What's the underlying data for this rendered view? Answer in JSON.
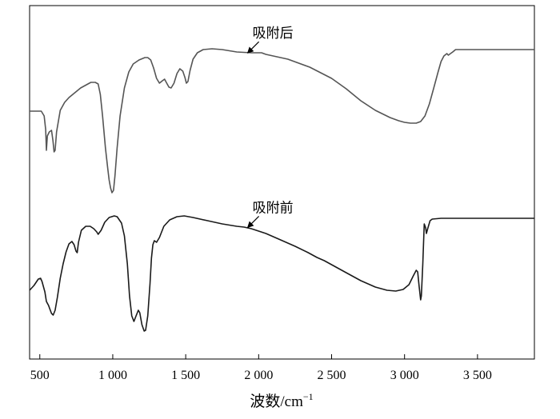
{
  "chart_data": {
    "type": "line",
    "title": "",
    "xlabel": "波数/cm",
    "xlabel_superscript": "−1",
    "ylabel": "",
    "xlim": [
      430,
      3890
    ],
    "xticks": [
      {
        "value": 500,
        "label": "500"
      },
      {
        "value": 1000,
        "label": "1 000"
      },
      {
        "value": 1500,
        "label": "1 500"
      },
      {
        "value": 2000,
        "label": "2 000"
      },
      {
        "value": 2500,
        "label": "2 500"
      },
      {
        "value": 3000,
        "label": "3 000"
      },
      {
        "value": 3500,
        "label": "3 500"
      }
    ],
    "y_axis_labels": "none",
    "grid": false,
    "legend": "none",
    "series": [
      {
        "color": "#555555",
        "points": [
          [
            430,
            139
          ],
          [
            480,
            139
          ],
          [
            510,
            139
          ],
          [
            530,
            145
          ],
          [
            540,
            162
          ],
          [
            545,
            188
          ],
          [
            552,
            170
          ],
          [
            565,
            165
          ],
          [
            580,
            163
          ],
          [
            590,
            176
          ],
          [
            598,
            190
          ],
          [
            605,
            188
          ],
          [
            615,
            165
          ],
          [
            640,
            138
          ],
          [
            670,
            128
          ],
          [
            700,
            122
          ],
          [
            740,
            116
          ],
          [
            780,
            110
          ],
          [
            820,
            106
          ],
          [
            850,
            103
          ],
          [
            880,
            103
          ],
          [
            900,
            105
          ],
          [
            915,
            118
          ],
          [
            930,
            145
          ],
          [
            950,
            185
          ],
          [
            965,
            210
          ],
          [
            975,
            225
          ],
          [
            985,
            235
          ],
          [
            995,
            241
          ],
          [
            1005,
            238
          ],
          [
            1015,
            220
          ],
          [
            1030,
            185
          ],
          [
            1050,
            145
          ],
          [
            1080,
            110
          ],
          [
            1110,
            90
          ],
          [
            1140,
            80
          ],
          [
            1180,
            75
          ],
          [
            1220,
            72
          ],
          [
            1240,
            72
          ],
          [
            1260,
            75
          ],
          [
            1280,
            85
          ],
          [
            1300,
            98
          ],
          [
            1320,
            104
          ],
          [
            1340,
            101
          ],
          [
            1355,
            99
          ],
          [
            1370,
            104
          ],
          [
            1385,
            109
          ],
          [
            1400,
            110
          ],
          [
            1420,
            104
          ],
          [
            1440,
            92
          ],
          [
            1460,
            86
          ],
          [
            1480,
            89
          ],
          [
            1495,
            97
          ],
          [
            1505,
            104
          ],
          [
            1515,
            102
          ],
          [
            1530,
            88
          ],
          [
            1550,
            74
          ],
          [
            1580,
            66
          ],
          [
            1620,
            62
          ],
          [
            1680,
            61
          ],
          [
            1750,
            62
          ],
          [
            1850,
            65
          ],
          [
            1950,
            66
          ],
          [
            2020,
            66
          ],
          [
            2050,
            68
          ],
          [
            2200,
            74
          ],
          [
            2350,
            84
          ],
          [
            2500,
            98
          ],
          [
            2600,
            111
          ],
          [
            2700,
            126
          ],
          [
            2800,
            138
          ],
          [
            2900,
            147
          ],
          [
            2960,
            151
          ],
          [
            3000,
            153
          ],
          [
            3040,
            154
          ],
          [
            3080,
            154
          ],
          [
            3110,
            152
          ],
          [
            3140,
            145
          ],
          [
            3170,
            130
          ],
          [
            3200,
            110
          ],
          [
            3230,
            90
          ],
          [
            3250,
            77
          ],
          [
            3270,
            70
          ],
          [
            3290,
            67
          ],
          [
            3300,
            69
          ],
          [
            3315,
            67
          ],
          [
            3330,
            65
          ],
          [
            3350,
            62
          ],
          [
            3400,
            62
          ],
          [
            3450,
            62
          ],
          [
            3500,
            62
          ],
          [
            3890,
            62
          ]
        ]
      },
      {
        "color": "#1a1a1a",
        "points": [
          [
            430,
            363
          ],
          [
            460,
            357
          ],
          [
            490,
            349
          ],
          [
            505,
            348
          ],
          [
            515,
            352
          ],
          [
            535,
            365
          ],
          [
            545,
            377
          ],
          [
            560,
            382
          ],
          [
            570,
            387
          ],
          [
            580,
            392
          ],
          [
            592,
            394
          ],
          [
            605,
            388
          ],
          [
            620,
            372
          ],
          [
            640,
            348
          ],
          [
            660,
            330
          ],
          [
            680,
            315
          ],
          [
            700,
            305
          ],
          [
            720,
            302
          ],
          [
            735,
            306
          ],
          [
            748,
            314
          ],
          [
            756,
            316
          ],
          [
            765,
            303
          ],
          [
            785,
            288
          ],
          [
            815,
            283
          ],
          [
            845,
            283
          ],
          [
            870,
            286
          ],
          [
            890,
            290
          ],
          [
            900,
            293
          ],
          [
            920,
            288
          ],
          [
            945,
            278
          ],
          [
            975,
            272
          ],
          [
            1010,
            270
          ],
          [
            1030,
            271
          ],
          [
            1060,
            279
          ],
          [
            1080,
            295
          ],
          [
            1100,
            330
          ],
          [
            1115,
            370
          ],
          [
            1130,
            395
          ],
          [
            1145,
            402
          ],
          [
            1160,
            395
          ],
          [
            1175,
            388
          ],
          [
            1185,
            391
          ],
          [
            1200,
            406
          ],
          [
            1215,
            414
          ],
          [
            1225,
            413
          ],
          [
            1240,
            395
          ],
          [
            1255,
            355
          ],
          [
            1265,
            323
          ],
          [
            1275,
            306
          ],
          [
            1285,
            301
          ],
          [
            1300,
            303
          ],
          [
            1320,
            297
          ],
          [
            1350,
            283
          ],
          [
            1390,
            275
          ],
          [
            1440,
            271
          ],
          [
            1490,
            270
          ],
          [
            1550,
            272
          ],
          [
            1650,
            276
          ],
          [
            1750,
            280
          ],
          [
            1850,
            283
          ],
          [
            1900,
            284
          ],
          [
            1950,
            286
          ],
          [
            2050,
            292
          ],
          [
            2150,
            300
          ],
          [
            2250,
            308
          ],
          [
            2340,
            316
          ],
          [
            2400,
            322
          ],
          [
            2450,
            326
          ],
          [
            2500,
            331
          ],
          [
            2600,
            341
          ],
          [
            2700,
            351
          ],
          [
            2800,
            359
          ],
          [
            2880,
            363
          ],
          [
            2940,
            364
          ],
          [
            2990,
            362
          ],
          [
            3030,
            356
          ],
          [
            3060,
            345
          ],
          [
            3080,
            338
          ],
          [
            3090,
            340
          ],
          [
            3100,
            358
          ],
          [
            3110,
            375
          ],
          [
            3115,
            370
          ],
          [
            3125,
            330
          ],
          [
            3135,
            280
          ],
          [
            3145,
            285
          ],
          [
            3150,
            292
          ],
          [
            3160,
            285
          ],
          [
            3175,
            276
          ],
          [
            3190,
            274
          ],
          [
            3250,
            273
          ],
          [
            3350,
            273
          ],
          [
            3450,
            273
          ],
          [
            3890,
            273
          ]
        ]
      }
    ],
    "annotations": [
      {
        "text": "吸附后",
        "series": 0,
        "points_to_x": 1870
      },
      {
        "text": "吸附前",
        "series": 1,
        "points_to_x": 1870
      }
    ]
  }
}
